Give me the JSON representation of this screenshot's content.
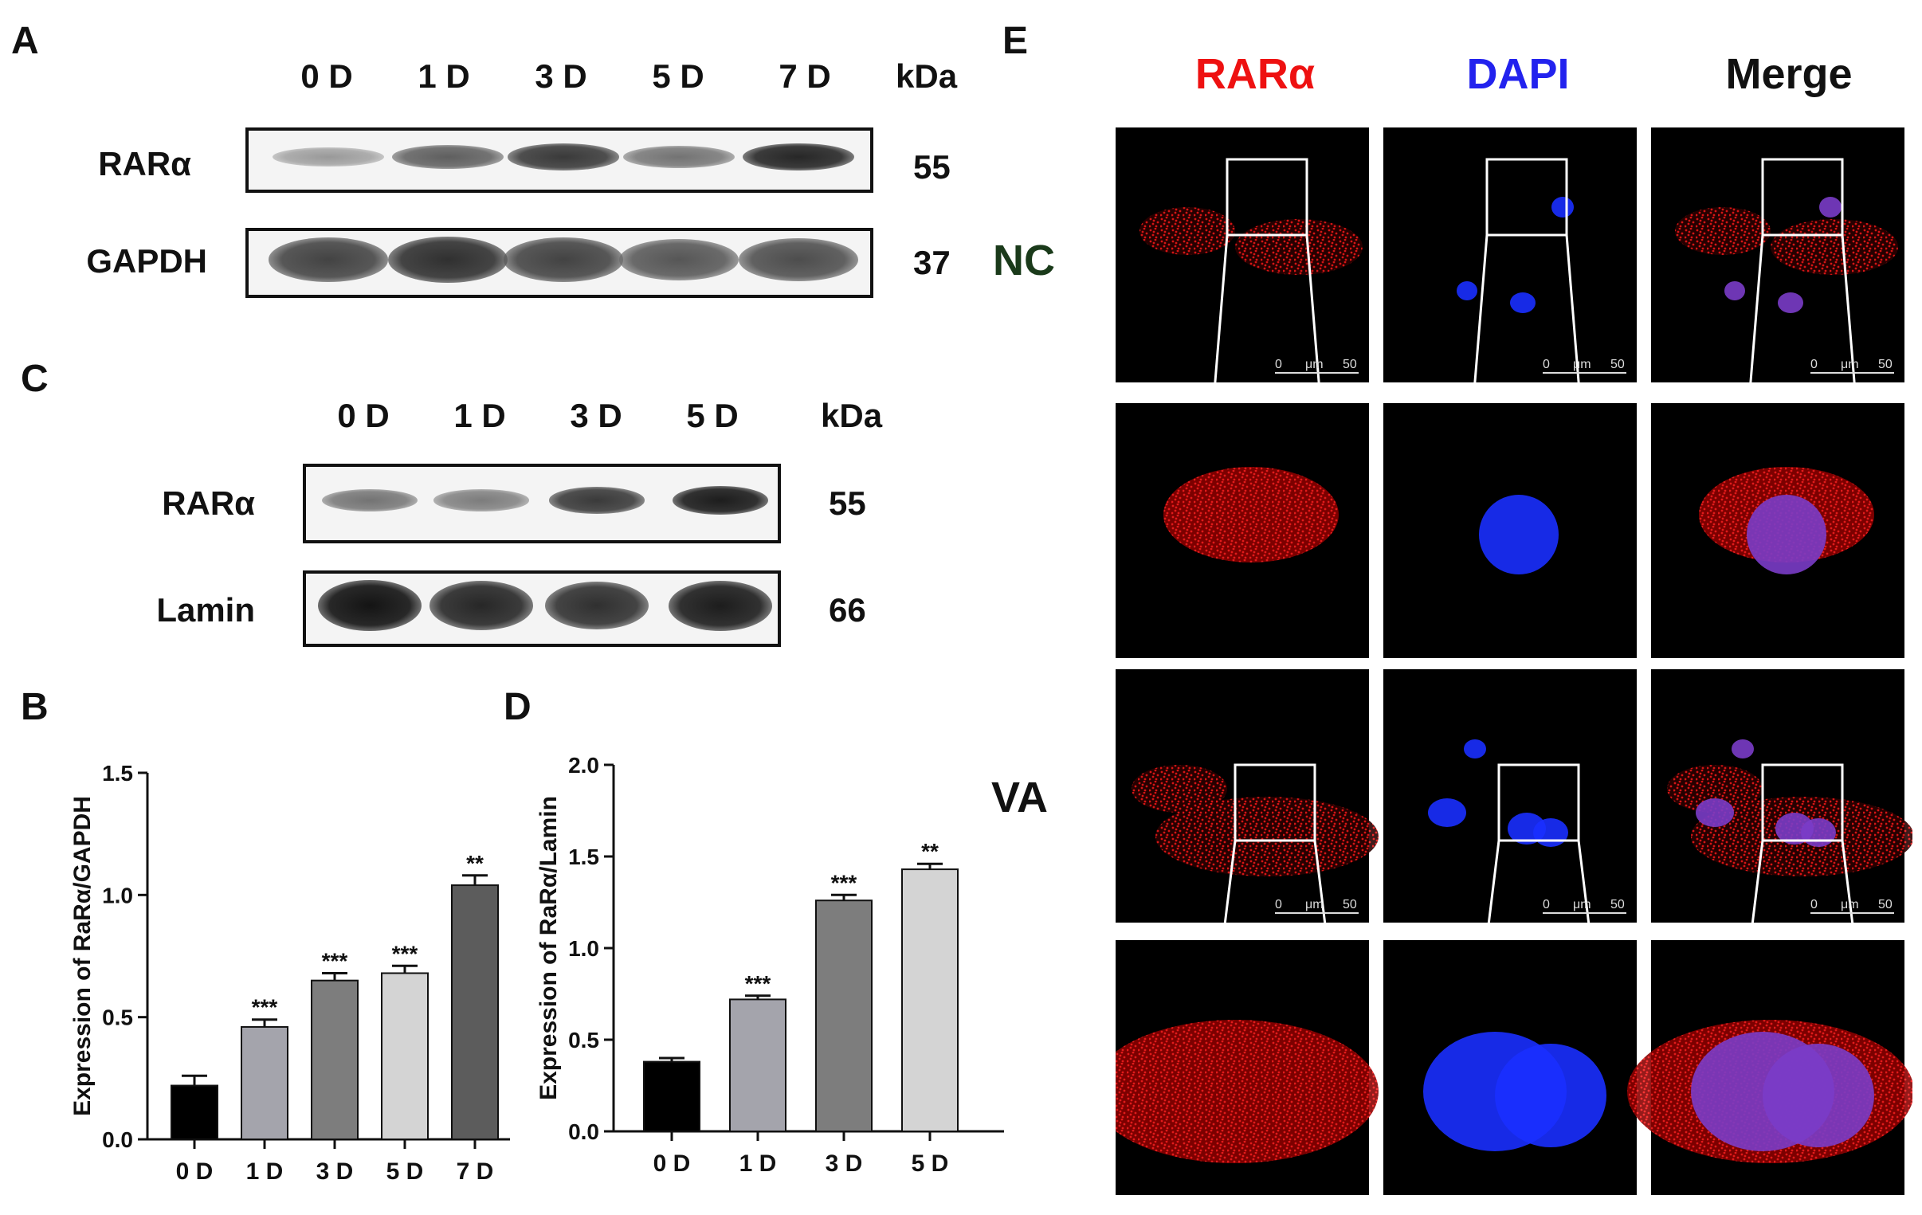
{
  "panels": {
    "A": "A",
    "B": "B",
    "C": "C",
    "D": "D",
    "E": "E"
  },
  "blotA": {
    "lanes": [
      "0 D",
      "1 D",
      "3 D",
      "5 D",
      "7 D"
    ],
    "unit": "kDa",
    "rows": [
      {
        "label": "RARα",
        "kda": "55",
        "intensity": [
          0.25,
          0.55,
          0.75,
          0.45,
          0.85
        ]
      },
      {
        "label": "GAPDH",
        "kda": "37",
        "intensity": [
          0.7,
          0.8,
          0.7,
          0.6,
          0.65
        ]
      }
    ]
  },
  "blotC": {
    "lanes": [
      "0 D",
      "1 D",
      "3 D",
      "5 D"
    ],
    "unit": "kDa",
    "rows": [
      {
        "label": "RARα",
        "kda": "55",
        "intensity": [
          0.45,
          0.4,
          0.75,
          0.9
        ]
      },
      {
        "label": "Lamin",
        "kda": "66",
        "intensity": [
          0.95,
          0.85,
          0.8,
          0.9
        ]
      }
    ]
  },
  "group_labels": {
    "nc": "NC",
    "va": "VA"
  },
  "chart_data": [
    {
      "type": "bar",
      "panel": "B",
      "categories": [
        "0 D",
        "1 D",
        "3 D",
        "5 D",
        "7 D"
      ],
      "values": [
        0.22,
        0.46,
        0.65,
        0.68,
        1.04
      ],
      "errors": [
        0.04,
        0.03,
        0.03,
        0.03,
        0.04
      ],
      "significance": [
        "",
        "***",
        "***",
        "***",
        "**"
      ],
      "colors": [
        "#000000",
        "#a4a4ac",
        "#7d7d7d",
        "#d4d4d4",
        "#5c5c5c"
      ],
      "ylabel": "Expression of RaRα/GAPDH",
      "ylim": [
        0,
        1.5
      ],
      "yticks": [
        "0.0",
        "0.5",
        "1.0",
        "1.5"
      ]
    },
    {
      "type": "bar",
      "panel": "D",
      "categories": [
        "0 D",
        "1 D",
        "3 D",
        "5 D"
      ],
      "values": [
        0.38,
        0.72,
        1.26,
        1.43
      ],
      "errors": [
        0.02,
        0.02,
        0.03,
        0.03
      ],
      "significance": [
        "",
        "***",
        "***",
        "**"
      ],
      "colors": [
        "#000000",
        "#a4a4ac",
        "#7d7d7d",
        "#d4d4d4"
      ],
      "ylabel": "Expression of RaRα/Lamin",
      "ylim": [
        0,
        2.0
      ],
      "yticks": [
        "0.0",
        "0.5",
        "1.0",
        "1.5",
        "2.0"
      ]
    }
  ],
  "microscopy": {
    "channels": [
      {
        "label": "RARα",
        "color": "#ee1111"
      },
      {
        "label": "DAPI",
        "color": "#2222ee"
      },
      {
        "label": "Merge",
        "color": "#111111"
      }
    ],
    "scale": {
      "start": "0",
      "unit": "μm",
      "end": "50"
    }
  }
}
